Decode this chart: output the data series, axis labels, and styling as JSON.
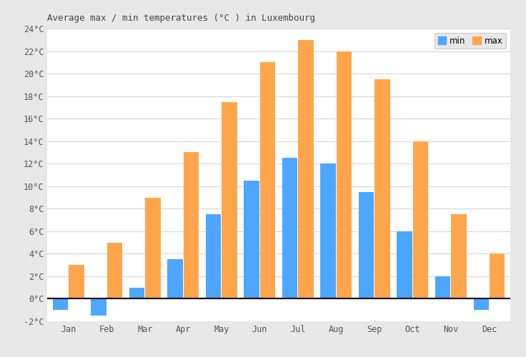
{
  "title": "Average max / min temperatures (°C ) in Luxembourg",
  "months": [
    "Jan",
    "Feb",
    "Mar",
    "Apr",
    "May",
    "Jun",
    "Jul",
    "Aug",
    "Sep",
    "Oct",
    "Nov",
    "Dec"
  ],
  "min_temps": [
    -1.0,
    -1.5,
    1.0,
    3.5,
    7.5,
    10.5,
    12.5,
    12.0,
    9.5,
    6.0,
    2.0,
    -1.0
  ],
  "max_temps": [
    3.0,
    5.0,
    9.0,
    13.0,
    17.5,
    21.0,
    23.0,
    22.0,
    19.5,
    14.0,
    7.5,
    4.0
  ],
  "color_min": "#4da6ff",
  "color_max": "#ffa64d",
  "ylim_min": -2,
  "ylim_max": 24,
  "yticks": [
    -2,
    0,
    2,
    4,
    6,
    8,
    10,
    12,
    14,
    16,
    18,
    20,
    22,
    24
  ],
  "ytick_labels": [
    "-2°C",
    "0°C",
    "2°C",
    "4°C",
    "6°C",
    "8°C",
    "10°C",
    "12°C",
    "14°C",
    "16°C",
    "18°C",
    "20°C",
    "22°C",
    "24°C"
  ],
  "legend_min_label": "min",
  "legend_max_label": "max",
  "fig_bg_color": "#e8e8e8",
  "plot_bg_color": "#ffffff",
  "grid_color": "#d0d8e0",
  "title_fontsize": 9,
  "bar_width": 0.4,
  "bar_gap": 0.02
}
